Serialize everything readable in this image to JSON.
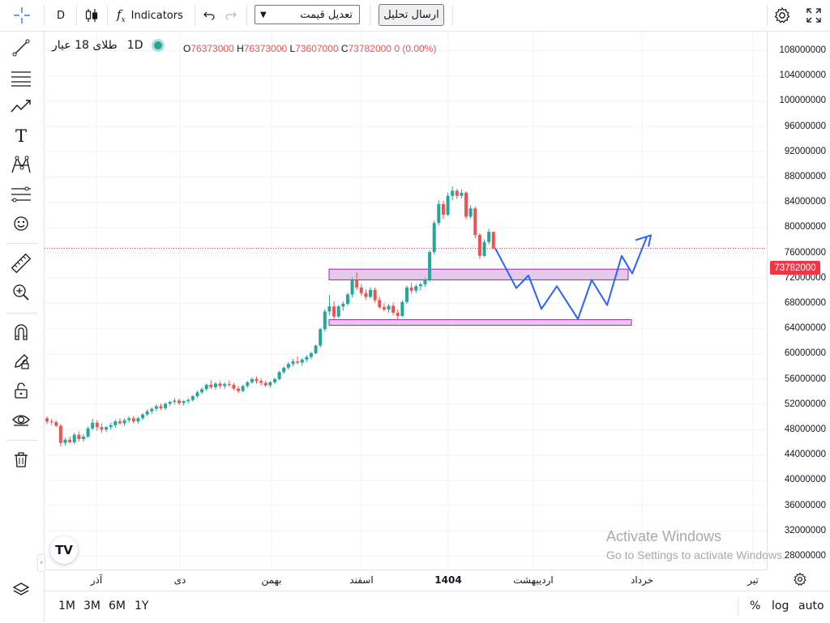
{
  "toolbar": {
    "interval": "D",
    "indicators_label": "Indicators",
    "select_value": "تعدیل قیمت",
    "send_button": "ارسال تحلیل"
  },
  "legend": {
    "symbol": "طلای 18 عیار",
    "interval": "1D",
    "open_label": "O",
    "open": "76373000",
    "high_label": "H",
    "high": "76373000",
    "low_label": "L",
    "low": "73607000",
    "close_label": "C",
    "close": "73782000",
    "change": "0 (0.00%)"
  },
  "current_price": "73782000",
  "price_labels": [
    "108000000",
    "104000000",
    "100000000",
    "96000000",
    "92000000",
    "88000000",
    "84000000",
    "80000000",
    "76000000",
    "72000000",
    "68000000",
    "64000000",
    "60000000",
    "56000000",
    "52000000",
    "48000000",
    "44000000",
    "40000000",
    "36000000",
    "32000000",
    "28000000"
  ],
  "time_labels": [
    "آذر",
    "دی",
    "بهمن",
    "اسفند",
    "1404",
    "اردیبهشت",
    "خرداد",
    "تیر"
  ],
  "bottom": {
    "r1": "1M",
    "r2": "3M",
    "r3": "6M",
    "r4": "1Y",
    "pct": "%",
    "log": "log",
    "auto": "auto"
  },
  "watermark": {
    "line1": "Activate Windows",
    "line2": "Go to Settings to activate Windows."
  },
  "colors": {
    "up": "#26a69a",
    "down": "#ef5350",
    "projection": "#2962ff",
    "zone_fill": "#e1bee7",
    "zone_border": "#9c27b0",
    "price_line": "#f23645"
  },
  "chart_data": {
    "type": "candlestick",
    "y_axis_range": [
      26500000,
      110000000
    ],
    "candles": [
      [
        46.9,
        47.2,
        46.0,
        46.4
      ],
      [
        46.4,
        46.8,
        45.8,
        46.3
      ],
      [
        46.3,
        46.6,
        45.5,
        45.7
      ],
      [
        45.7,
        46.0,
        42.5,
        43.0
      ],
      [
        43.0,
        43.8,
        42.6,
        43.5
      ],
      [
        43.5,
        44.0,
        42.9,
        43.1
      ],
      [
        43.1,
        44.6,
        42.8,
        44.3
      ],
      [
        44.3,
        44.8,
        43.2,
        43.6
      ],
      [
        43.6,
        44.4,
        43.2,
        44.0
      ],
      [
        44.0,
        45.6,
        43.8,
        45.3
      ],
      [
        45.3,
        46.8,
        45.0,
        46.2
      ],
      [
        46.2,
        46.6,
        44.9,
        45.5
      ],
      [
        45.5,
        46.1,
        44.6,
        45.1
      ],
      [
        45.1,
        45.7,
        44.7,
        45.5
      ],
      [
        45.5,
        46.2,
        45.1,
        45.8
      ],
      [
        45.8,
        46.7,
        45.4,
        46.4
      ],
      [
        46.4,
        46.9,
        45.9,
        46.1
      ],
      [
        46.1,
        46.9,
        45.7,
        46.6
      ],
      [
        46.6,
        47.2,
        46.2,
        46.9
      ],
      [
        46.9,
        47.3,
        46.1,
        46.4
      ],
      [
        46.4,
        47.1,
        46.0,
        46.9
      ],
      [
        46.9,
        47.7,
        46.6,
        47.5
      ],
      [
        47.5,
        48.3,
        47.2,
        48.0
      ],
      [
        48.0,
        48.6,
        47.6,
        48.4
      ],
      [
        48.4,
        49.1,
        48.0,
        48.8
      ],
      [
        48.8,
        49.2,
        48.2,
        48.5
      ],
      [
        48.5,
        49.4,
        48.2,
        49.2
      ],
      [
        49.2,
        49.7,
        48.8,
        49.5
      ],
      [
        49.5,
        50.1,
        49.1,
        49.7
      ],
      [
        49.7,
        50.0,
        49.0,
        49.3
      ],
      [
        49.3,
        49.8,
        48.9,
        49.6
      ],
      [
        49.6,
        50.1,
        49.2,
        49.8
      ],
      [
        49.8,
        50.6,
        49.5,
        50.4
      ],
      [
        50.4,
        51.3,
        50.1,
        51.0
      ],
      [
        51.0,
        51.8,
        50.7,
        51.5
      ],
      [
        51.5,
        52.4,
        51.2,
        52.2
      ],
      [
        52.2,
        52.9,
        51.5,
        51.8
      ],
      [
        51.8,
        52.6,
        51.4,
        52.4
      ],
      [
        52.4,
        52.8,
        51.6,
        52.0
      ],
      [
        52.0,
        52.6,
        51.5,
        52.3
      ],
      [
        52.3,
        52.9,
        51.9,
        52.2
      ],
      [
        52.2,
        52.5,
        51.3,
        51.6
      ],
      [
        51.6,
        52.0,
        50.9,
        51.2
      ],
      [
        51.2,
        52.2,
        51.0,
        52.0
      ],
      [
        52.0,
        52.8,
        51.7,
        52.6
      ],
      [
        52.6,
        53.4,
        52.3,
        53.1
      ],
      [
        53.1,
        53.5,
        52.4,
        52.8
      ],
      [
        52.8,
        53.2,
        52.1,
        52.5
      ],
      [
        52.5,
        52.9,
        51.8,
        52.1
      ],
      [
        52.1,
        52.8,
        51.7,
        52.6
      ],
      [
        52.6,
        53.3,
        52.3,
        53.1
      ],
      [
        53.1,
        54.4,
        52.9,
        54.2
      ],
      [
        54.2,
        55.1,
        53.9,
        54.9
      ],
      [
        54.9,
        55.8,
        54.6,
        55.5
      ],
      [
        55.5,
        56.3,
        55.1,
        55.9
      ],
      [
        55.9,
        56.7,
        55.4,
        55.7
      ],
      [
        55.7,
        56.4,
        55.2,
        56.2
      ],
      [
        56.2,
        56.9,
        55.8,
        56.6
      ],
      [
        56.6,
        57.4,
        56.2,
        57.2
      ],
      [
        57.2,
        58.6,
        57.0,
        58.4
      ],
      [
        58.4,
        61.2,
        58.1,
        61.0
      ],
      [
        61.0,
        64.2,
        60.6,
        63.8
      ],
      [
        63.8,
        66.4,
        63.2,
        64.6
      ],
      [
        64.6,
        65.4,
        62.6,
        63.0
      ],
      [
        63.0,
        64.8,
        62.8,
        64.6
      ],
      [
        64.6,
        65.4,
        63.9,
        65.0
      ],
      [
        65.0,
        66.8,
        64.7,
        66.5
      ],
      [
        66.5,
        69.2,
        66.0,
        68.8
      ],
      [
        68.8,
        70.0,
        67.2,
        67.6
      ],
      [
        67.6,
        68.1,
        66.3,
        66.7
      ],
      [
        66.7,
        67.3,
        65.6,
        66.1
      ],
      [
        66.1,
        67.6,
        65.9,
        67.2
      ],
      [
        67.2,
        67.6,
        65.2,
        65.6
      ],
      [
        65.6,
        66.1,
        64.2,
        64.5
      ],
      [
        64.5,
        65.1,
        63.8,
        64.1
      ],
      [
        64.1,
        65.0,
        63.6,
        64.7
      ],
      [
        64.7,
        65.2,
        63.2,
        63.6
      ],
      [
        63.6,
        64.1,
        62.4,
        63.1
      ],
      [
        63.1,
        65.6,
        62.9,
        65.3
      ],
      [
        65.3,
        67.9,
        65.0,
        67.6
      ],
      [
        67.6,
        68.4,
        66.6,
        67.1
      ],
      [
        67.1,
        68.1,
        66.7,
        67.8
      ],
      [
        67.8,
        68.4,
        67.1,
        68.1
      ],
      [
        68.1,
        69.1,
        67.7,
        68.8
      ],
      [
        68.8,
        73.5,
        68.5,
        73.2
      ],
      [
        73.2,
        78.2,
        72.8,
        77.8
      ],
      [
        77.8,
        81.4,
        77.4,
        80.8
      ],
      [
        80.8,
        81.3,
        78.4,
        79.1
      ],
      [
        79.1,
        82.6,
        78.9,
        82.1
      ],
      [
        82.1,
        83.6,
        81.4,
        82.9
      ],
      [
        82.9,
        83.2,
        81.6,
        82.1
      ],
      [
        82.1,
        83.1,
        81.7,
        82.6
      ],
      [
        82.6,
        82.8,
        78.4,
        78.8
      ],
      [
        78.8,
        80.6,
        78.5,
        80.1
      ],
      [
        80.1,
        80.4,
        75.4,
        75.9
      ],
      [
        75.9,
        76.2,
        72.1,
        72.6
      ],
      [
        72.6,
        75.2,
        72.4,
        74.8
      ],
      [
        74.8,
        76.9,
        74.4,
        76.4
      ],
      [
        76.4,
        76.4,
        73.6,
        73.8
      ]
    ],
    "zones": [
      {
        "from_price": 68800000,
        "to_price": 70500000
      },
      {
        "from_price": 61800000,
        "to_price": 62500000
      }
    ],
    "projection_path": [
      [
        0,
        73.8
      ],
      [
        1,
        67.5
      ],
      [
        2,
        69.5
      ],
      [
        3,
        64.2
      ],
      [
        4,
        67.8
      ],
      [
        5,
        62.6
      ],
      [
        6,
        68.8
      ],
      [
        7,
        64.8
      ],
      [
        8,
        72.6
      ],
      [
        9,
        69.8
      ],
      [
        10,
        75.6
      ]
    ]
  }
}
